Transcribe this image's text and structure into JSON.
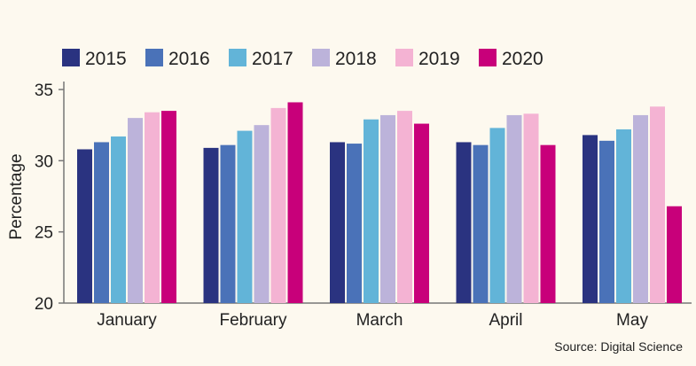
{
  "chart_data": {
    "type": "bar",
    "title": "",
    "xlabel": "",
    "ylabel": "Percentage",
    "ylim": [
      20,
      35
    ],
    "yticks": [
      20,
      25,
      30,
      35
    ],
    "grid": false,
    "legend_position": "top",
    "categories": [
      "January",
      "February",
      "March",
      "April",
      "May"
    ],
    "series": [
      {
        "name": "2015",
        "color": "#2a3380",
        "values": [
          30.8,
          30.9,
          31.3,
          31.3,
          31.8
        ]
      },
      {
        "name": "2016",
        "color": "#4a72b8",
        "values": [
          31.3,
          31.1,
          31.2,
          31.1,
          31.4
        ]
      },
      {
        "name": "2017",
        "color": "#62b4d8",
        "values": [
          31.7,
          32.1,
          32.9,
          32.3,
          32.2
        ]
      },
      {
        "name": "2018",
        "color": "#bcb3da",
        "values": [
          33.0,
          32.5,
          33.2,
          33.2,
          33.2
        ]
      },
      {
        "name": "2019",
        "color": "#f4b3d3",
        "values": [
          33.4,
          33.7,
          33.5,
          33.3,
          33.8
        ]
      },
      {
        "name": "2020",
        "color": "#c8007a",
        "values": [
          33.5,
          34.1,
          32.6,
          31.1,
          26.8
        ]
      }
    ],
    "source": "Source: Digital Science"
  }
}
